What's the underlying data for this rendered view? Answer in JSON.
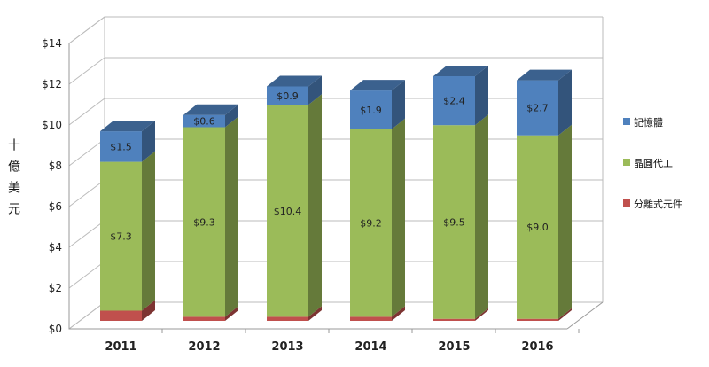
{
  "chart_data": {
    "type": "bar",
    "stacked": true,
    "style": "3d",
    "categories": [
      "2011",
      "2012",
      "2013",
      "2014",
      "2015",
      "2016"
    ],
    "series": [
      {
        "name": "分離式元件",
        "color": "#c0504d",
        "values": [
          0.5,
          0.2,
          0.2,
          0.2,
          0.1,
          0.1
        ],
        "labels": [
          "",
          "",
          "",
          "",
          "",
          ""
        ]
      },
      {
        "name": "晶圓代工",
        "color": "#9bbb59",
        "values": [
          7.3,
          9.3,
          10.4,
          9.2,
          9.5,
          9.0
        ],
        "labels": [
          "$7.3",
          "$9.3",
          "$10.4",
          "$9.2",
          "$9.5",
          "$9.0"
        ]
      },
      {
        "name": "記憶體",
        "color": "#4f81bd",
        "values": [
          1.5,
          0.6,
          0.9,
          1.9,
          2.4,
          2.7
        ],
        "labels": [
          "$1.5",
          "$0.6",
          "$0.9",
          "$1.9",
          "$2.4",
          "$2.7"
        ]
      }
    ],
    "ylabel": "十億美元",
    "ylim": [
      0,
      14
    ],
    "yticks": [
      "$0",
      "$2",
      "$4",
      "$6",
      "$8",
      "$10",
      "$12",
      "$14"
    ],
    "grid": true,
    "legend": "right",
    "legend_order": [
      "記憶體",
      "晶圓代工",
      "分離式元件"
    ]
  }
}
